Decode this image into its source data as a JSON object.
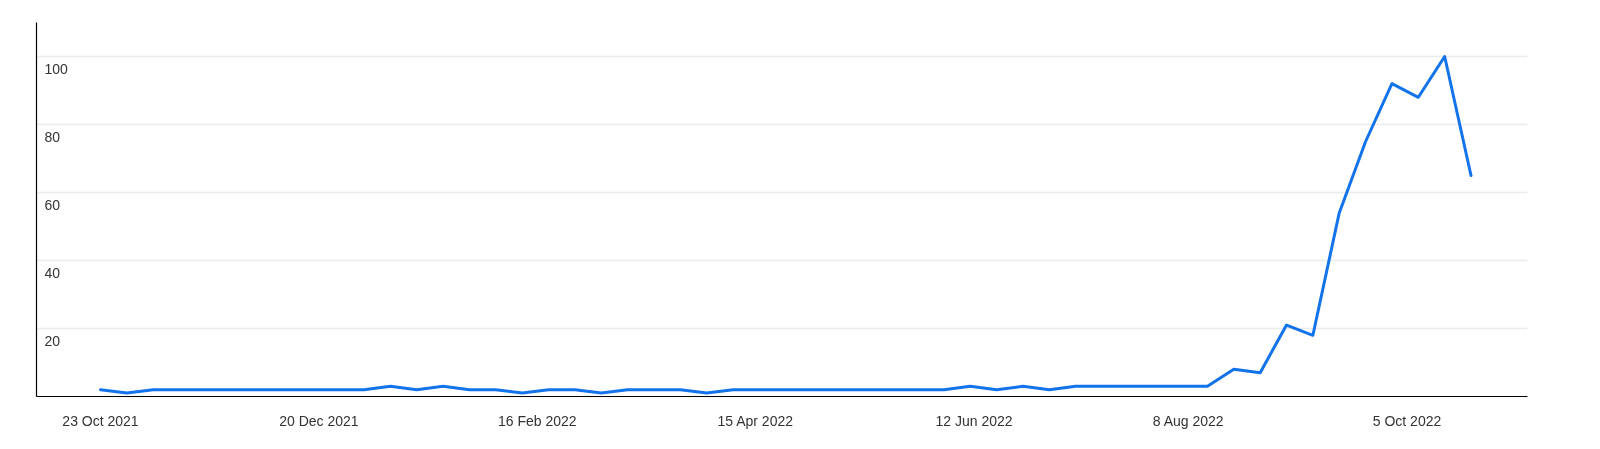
{
  "chart_data": {
    "type": "line",
    "x": [
      "2021-10-23",
      "2021-10-30",
      "2021-11-06",
      "2021-11-13",
      "2021-11-20",
      "2021-11-27",
      "2021-12-04",
      "2021-12-11",
      "2021-12-18",
      "2021-12-25",
      "2022-01-01",
      "2022-01-08",
      "2022-01-15",
      "2022-01-22",
      "2022-01-29",
      "2022-02-05",
      "2022-02-12",
      "2022-02-19",
      "2022-02-26",
      "2022-03-05",
      "2022-03-12",
      "2022-03-19",
      "2022-03-26",
      "2022-04-02",
      "2022-04-09",
      "2022-04-16",
      "2022-04-23",
      "2022-04-30",
      "2022-05-07",
      "2022-05-14",
      "2022-05-21",
      "2022-05-28",
      "2022-06-04",
      "2022-06-11",
      "2022-06-18",
      "2022-06-25",
      "2022-07-02",
      "2022-07-09",
      "2022-07-16",
      "2022-07-23",
      "2022-07-30",
      "2022-08-06",
      "2022-08-13",
      "2022-08-20",
      "2022-08-27",
      "2022-09-03",
      "2022-09-10",
      "2022-09-17",
      "2022-09-24",
      "2022-10-01",
      "2022-10-08",
      "2022-10-15",
      "2022-10-22"
    ],
    "series": [
      {
        "color": "#1273ea",
        "values": [
          2,
          1,
          2,
          2,
          2,
          2,
          2,
          2,
          2,
          2,
          2,
          3,
          2,
          3,
          2,
          2,
          1,
          2,
          2,
          1,
          2,
          2,
          2,
          1,
          2,
          2,
          2,
          2,
          2,
          2,
          2,
          2,
          2,
          3,
          2,
          3,
          2,
          3,
          3,
          3,
          3,
          3,
          3,
          8,
          7,
          21,
          18,
          54,
          75,
          92,
          88,
          100,
          65
        ]
      }
    ],
    "xlim": [
      "2021-10-06",
      "2022-11-06"
    ],
    "xticks": [
      {
        "value": "2021-10-23",
        "label": "23 Oct 2021"
      },
      {
        "value": "2021-12-20",
        "label": "20 Dec 2021"
      },
      {
        "value": "2022-02-16",
        "label": "16 Feb 2022"
      },
      {
        "value": "2022-04-15",
        "label": "15 Apr 2022"
      },
      {
        "value": "2022-06-12",
        "label": "12 Jun 2022"
      },
      {
        "value": "2022-08-08",
        "label": "8 Aug 2022"
      },
      {
        "value": "2022-10-05",
        "label": "5 Oct 2022"
      }
    ],
    "ylim": [
      0,
      110
    ],
    "yticks": [
      20,
      40,
      60,
      80,
      100
    ],
    "grid": "y",
    "line_style": "solid"
  }
}
